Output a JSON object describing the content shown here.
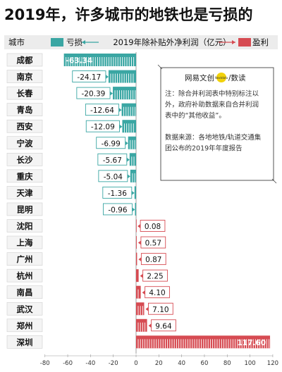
{
  "title": "2019年，许多城市的地铁也是亏损的",
  "header": {
    "city_label": "城市",
    "loss_label": "亏损",
    "metric_label": "2019年除补贴外净利润（亿元）",
    "profit_label": "盈利"
  },
  "note": {
    "brand_left": "网易文创",
    "brand_badge": "Nextdata",
    "brand_right": "数读",
    "lines": [
      "注：除合并利润表中特别标注以",
      "外，政府补助数据来自合并利润",
      "表中的“其他收益”。",
      "",
      "数据来源：各地地铁/轨道交通集",
      "团公布的2019年年度报告"
    ]
  },
  "colors": {
    "loss": "#3aa6a3",
    "profit": "#d64b52",
    "header_bg": "#ececec",
    "label_box": "#f4f4f4"
  },
  "chart_data": {
    "type": "bar",
    "orientation": "horizontal",
    "categories": [
      "成都",
      "南京",
      "长春",
      "青岛",
      "西安",
      "宁波",
      "长沙",
      "重庆",
      "天津",
      "昆明",
      "沈阳",
      "上海",
      "广州",
      "杭州",
      "南昌",
      "武汉",
      "郑州",
      "深圳"
    ],
    "values": [
      -63.34,
      -24.17,
      -20.39,
      -12.64,
      -12.09,
      -6.99,
      -5.67,
      -5.04,
      -1.36,
      -0.96,
      0.08,
      0.57,
      0.87,
      2.25,
      4.1,
      7.1,
      9.64,
      117.6
    ],
    "value_labels": [
      "-63.34",
      "-24.17",
      "-20.39",
      "-12.64",
      "-12.09",
      "-6.99",
      "-5.67",
      "-5.04",
      "-1.36",
      "-0.96",
      "0.08",
      "0.57",
      "0.87",
      "2.25",
      "4.10",
      "7.10",
      "9.64",
      "117.60"
    ],
    "xlim": [
      -80,
      120
    ],
    "xticks": [
      -80,
      -60,
      -40,
      -20,
      0,
      20,
      40,
      60,
      80,
      100,
      120
    ],
    "xlabel": "",
    "ylabel": ""
  }
}
